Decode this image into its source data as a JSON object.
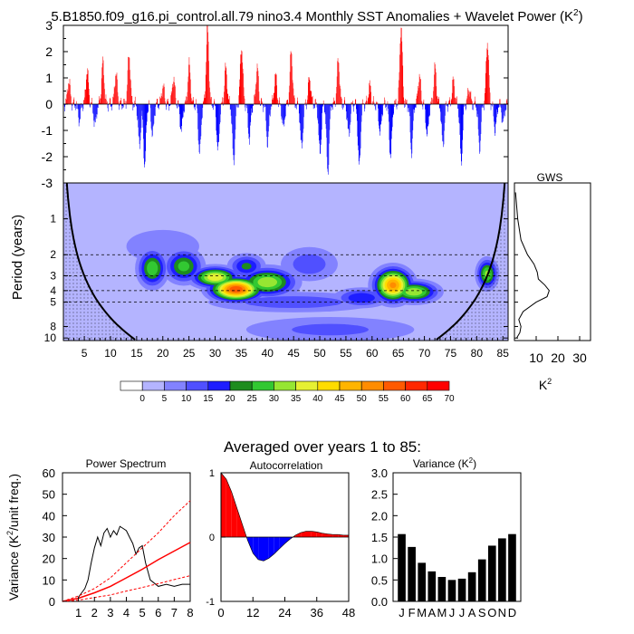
{
  "header": {
    "title": "5.B1850.f09_g16.pi_control.all.79 nino3.4 Monthly SST Anomalies + Wavelet Power (K",
    "title_sup": "2",
    "title_close": ")"
  },
  "section2_title": "Averaged over years 1 to 85:",
  "chart_data": [
    {
      "type": "bar",
      "name": "Monthly SST Anomalies",
      "ylim": [
        -3,
        3
      ],
      "yticks": [
        "3",
        "2",
        "1",
        "0",
        "-1",
        "-2",
        "-3"
      ],
      "colors": {
        "positive": "#ff0000",
        "negative": "#0000ff"
      },
      "x_years": [
        1,
        86
      ],
      "peaks": [
        {
          "year": 2.0,
          "value": 0.9
        },
        {
          "year": 4.0,
          "value": -0.6
        },
        {
          "year": 5.5,
          "value": 1.3
        },
        {
          "year": 7.0,
          "value": -0.8
        },
        {
          "year": 8.5,
          "value": 1.6
        },
        {
          "year": 11.0,
          "value": 1.2
        },
        {
          "year": 13.5,
          "value": 1.9
        },
        {
          "year": 15.5,
          "value": -1.6
        },
        {
          "year": 16.5,
          "value": -2.3
        },
        {
          "year": 18.0,
          "value": -1.2
        },
        {
          "year": 20.0,
          "value": 0.7
        },
        {
          "year": 22.0,
          "value": 1.0
        },
        {
          "year": 23.5,
          "value": -1.0
        },
        {
          "year": 25.0,
          "value": 1.5
        },
        {
          "year": 27.0,
          "value": -1.9
        },
        {
          "year": 28.5,
          "value": 2.9
        },
        {
          "year": 30.5,
          "value": -1.8
        },
        {
          "year": 32.0,
          "value": 1.4
        },
        {
          "year": 33.5,
          "value": -2.2
        },
        {
          "year": 35.0,
          "value": 2.2
        },
        {
          "year": 36.5,
          "value": -1.3
        },
        {
          "year": 38.0,
          "value": 1.4
        },
        {
          "year": 40.0,
          "value": -1.5
        },
        {
          "year": 41.5,
          "value": 1.1
        },
        {
          "year": 43.0,
          "value": -0.9
        },
        {
          "year": 44.5,
          "value": 2.0
        },
        {
          "year": 46.5,
          "value": -1.7
        },
        {
          "year": 48.0,
          "value": 1.0
        },
        {
          "year": 50.0,
          "value": -1.9
        },
        {
          "year": 51.5,
          "value": -2.6
        },
        {
          "year": 53.5,
          "value": 1.7
        },
        {
          "year": 55.5,
          "value": -1.2
        },
        {
          "year": 57.5,
          "value": -2.4
        },
        {
          "year": 59.5,
          "value": 0.7
        },
        {
          "year": 61.5,
          "value": -1.1
        },
        {
          "year": 63.5,
          "value": -2.0
        },
        {
          "year": 65.5,
          "value": 3.0
        },
        {
          "year": 67.5,
          "value": -1.8
        },
        {
          "year": 69.0,
          "value": 1.1
        },
        {
          "year": 70.5,
          "value": -1.2
        },
        {
          "year": 72.0,
          "value": 1.4
        },
        {
          "year": 73.5,
          "value": -1.6
        },
        {
          "year": 75.5,
          "value": 0.9
        },
        {
          "year": 77.0,
          "value": -2.2
        },
        {
          "year": 78.5,
          "value": 0.6
        },
        {
          "year": 80.5,
          "value": -1.7
        },
        {
          "year": 82.0,
          "value": 2.4
        },
        {
          "year": 83.5,
          "value": -1.0
        },
        {
          "year": 85.0,
          "value": -0.7
        }
      ]
    },
    {
      "type": "heatmap",
      "name": "Wavelet Power",
      "ylabel": "Period (years)",
      "xticks": [
        "5",
        "10",
        "15",
        "20",
        "25",
        "30",
        "35",
        "40",
        "45",
        "50",
        "55",
        "60",
        "65",
        "70",
        "75",
        "80",
        "85"
      ],
      "yticks": [
        "1",
        "2",
        "3",
        "4",
        "5",
        "8",
        "10"
      ],
      "xlim": [
        1,
        86
      ],
      "period_range": [
        0.5,
        10.5
      ],
      "colorbar": {
        "labels": [
          "0",
          "5",
          "10",
          "15",
          "20",
          "25",
          "30",
          "35",
          "40",
          "45",
          "50",
          "55",
          "60",
          "65",
          "70"
        ],
        "colors": [
          "#ffffff",
          "#b4b4ff",
          "#8282ff",
          "#5050ff",
          "#1e1eff",
          "#1e8c1e",
          "#32c832",
          "#96e632",
          "#e6f032",
          "#ffdc00",
          "#ffb400",
          "#ff8c00",
          "#ff5a00",
          "#ff2800",
          "#ff0000"
        ]
      },
      "blobs": [
        {
          "year": 18,
          "period": 2.6,
          "power": 30,
          "rx": 3.5,
          "rp": 0.25
        },
        {
          "year": 24,
          "period": 2.5,
          "power": 28,
          "rx": 4.5,
          "rp": 0.22
        },
        {
          "year": 34,
          "period": 3.9,
          "power": 60,
          "rx": 7,
          "rp": 0.18
        },
        {
          "year": 30,
          "period": 3.1,
          "power": 40,
          "rx": 6,
          "rp": 0.15
        },
        {
          "year": 40,
          "period": 3.4,
          "power": 35,
          "rx": 7,
          "rp": 0.2
        },
        {
          "year": 36,
          "period": 2.5,
          "power": 22,
          "rx": 4,
          "rp": 0.15
        },
        {
          "year": 64,
          "period": 3.6,
          "power": 52,
          "rx": 5,
          "rp": 0.25
        },
        {
          "year": 68,
          "period": 4.1,
          "power": 35,
          "rx": 6,
          "rp": 0.15
        },
        {
          "year": 58,
          "period": 4.6,
          "power": 20,
          "rx": 6,
          "rp": 0.12
        },
        {
          "year": 82,
          "period": 2.9,
          "power": 32,
          "rx": 2.5,
          "rp": 0.2
        },
        {
          "year": 48,
          "period": 2.4,
          "power": 14,
          "rx": 6,
          "rp": 0.2
        },
        {
          "year": 45,
          "period": 5.0,
          "power": 14,
          "rx": 18,
          "rp": 0.12
        },
        {
          "year": 52,
          "period": 8.5,
          "power": 12,
          "rx": 18,
          "rp": 0.15
        },
        {
          "year": 20,
          "period": 1.7,
          "power": 10,
          "rx": 8,
          "rp": 0.2
        }
      ],
      "hlines": [
        2.0,
        3.0,
        4.0,
        5.0
      ]
    },
    {
      "type": "line",
      "name": "GWS",
      "title": "GWS",
      "xlabel": "K",
      "xlabel_sup": "2",
      "xticks": [
        "10",
        "20",
        "30"
      ],
      "xlim": [
        0,
        35
      ],
      "points": [
        {
          "period": 0.6,
          "power": 0.5
        },
        {
          "period": 1.0,
          "power": 1.5
        },
        {
          "period": 1.5,
          "power": 3
        },
        {
          "period": 2.0,
          "power": 6
        },
        {
          "period": 2.4,
          "power": 9
        },
        {
          "period": 2.8,
          "power": 10.5
        },
        {
          "period": 3.2,
          "power": 11
        },
        {
          "period": 3.6,
          "power": 14
        },
        {
          "period": 4.0,
          "power": 16
        },
        {
          "period": 4.5,
          "power": 15
        },
        {
          "period": 5.0,
          "power": 10
        },
        {
          "period": 6.0,
          "power": 4
        },
        {
          "period": 7.0,
          "power": 2
        },
        {
          "period": 8.0,
          "power": 3
        },
        {
          "period": 9.0,
          "power": 2.5
        },
        {
          "period": 10.0,
          "power": 1
        }
      ]
    },
    {
      "type": "line",
      "name": "Power Spectrum",
      "title": "Power Spectrum",
      "ylabel": "Variance (K",
      "ylabel_sup": "2",
      "ylabel_close": "/unit freq.)",
      "xticks": [
        "1",
        "2",
        "3",
        "4",
        "5",
        "6",
        "7",
        "8"
      ],
      "yticks": [
        "0",
        "10",
        "20",
        "30",
        "40",
        "50",
        "60"
      ],
      "xlim": [
        0,
        8
      ],
      "ylim": [
        0,
        60
      ],
      "series": [
        {
          "x": [
            1.0,
            1.2,
            1.4,
            1.6,
            1.8,
            2.0,
            2.2,
            2.4,
            2.6,
            2.8,
            3.0,
            3.2,
            3.4,
            3.6,
            3.8,
            4.0,
            4.2,
            4.4,
            4.6,
            4.8,
            5.0,
            5.2,
            5.5,
            6.0,
            6.5,
            7.0,
            7.5,
            8.0
          ],
          "y": [
            2,
            4,
            6,
            10,
            18,
            25,
            30,
            26,
            32,
            34,
            30,
            33,
            31,
            35,
            34,
            33,
            30,
            27,
            22,
            25,
            26,
            18,
            10,
            7,
            8,
            7,
            8,
            8
          ],
          "color": "#000000"
        },
        {
          "x": [
            0,
            1,
            2,
            3,
            4,
            5,
            6,
            7,
            8
          ],
          "y": [
            0,
            1.5,
            4,
            7,
            11,
            15,
            19.5,
            23.5,
            27.5
          ],
          "color": "#ff0000",
          "width": 1.5
        },
        {
          "x": [
            0,
            1,
            2,
            3,
            4,
            5,
            6,
            7,
            8
          ],
          "y": [
            0,
            2.5,
            6,
            11,
            18,
            25,
            32,
            40,
            47
          ],
          "color": "#ff0000",
          "dash": true
        },
        {
          "x": [
            0,
            1,
            2,
            3,
            4,
            5,
            6,
            7,
            8
          ],
          "y": [
            0,
            0.6,
            1.8,
            3,
            4.8,
            6.5,
            8.3,
            10.2,
            12
          ],
          "color": "#ff0000",
          "dash": true
        }
      ]
    },
    {
      "type": "area",
      "name": "Autocorrelation",
      "title": "Autocorrelation",
      "xticks": [
        "0",
        "12",
        "24",
        "36",
        "48"
      ],
      "yticks": [
        "1",
        "0",
        "-1"
      ],
      "xlim": [
        0,
        48
      ],
      "ylim": [
        -1,
        1
      ],
      "x": [
        0,
        2,
        4,
        6,
        8,
        10,
        12,
        14,
        16,
        18,
        20,
        22,
        24,
        26,
        28,
        30,
        32,
        34,
        36,
        38,
        40,
        42,
        44,
        46,
        48
      ],
      "y": [
        1,
        0.9,
        0.7,
        0.45,
        0.2,
        -0.05,
        -0.25,
        -0.35,
        -0.37,
        -0.33,
        -0.26,
        -0.18,
        -0.1,
        -0.03,
        0.03,
        0.07,
        0.09,
        0.09,
        0.08,
        0.06,
        0.05,
        0.04,
        0.04,
        0.03,
        0.03
      ],
      "colors": {
        "positive": "#ff0000",
        "negative": "#0000ff"
      }
    },
    {
      "type": "bar",
      "name": "Variance",
      "title": "Variance (K",
      "title_sup": "2",
      "title_close": ")",
      "categories": [
        "J",
        "F",
        "M",
        "A",
        "M",
        "J",
        "J",
        "A",
        "S",
        "O",
        "N",
        "D"
      ],
      "values": [
        1.57,
        1.27,
        0.9,
        0.7,
        0.57,
        0.5,
        0.53,
        0.68,
        0.98,
        1.3,
        1.47,
        1.57
      ],
      "ylim": [
        0,
        3.0
      ],
      "yticks": [
        "0.0",
        "0.5",
        "1.0",
        "1.5",
        "2.0",
        "2.5",
        "3.0"
      ],
      "color": "#000000"
    }
  ]
}
